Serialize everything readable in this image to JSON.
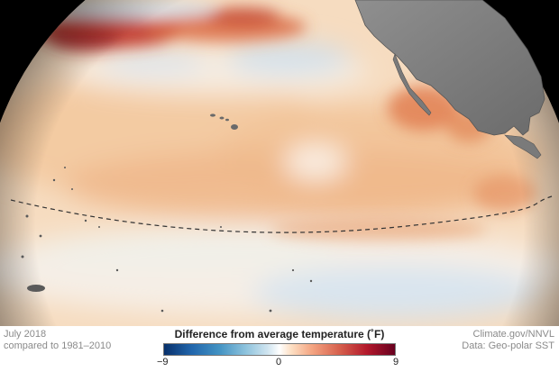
{
  "caption": {
    "date": "July 2018",
    "baseline": "compared to 1981–2010",
    "credit": "Climate.gov/NNVL",
    "source": "Data: Geo-polar SST"
  },
  "legend": {
    "title": "Difference from average temperature (˚F)",
    "min_label": "−9",
    "mid_label": "0",
    "max_label": "9",
    "colors": [
      "#08306b",
      "#2166ac",
      "#4393c3",
      "#92c5de",
      "#d1e5f0",
      "#ffffff",
      "#fde0c5",
      "#f4a582",
      "#d6604d",
      "#b2182b",
      "#67001f"
    ]
  },
  "map": {
    "region": "Pacific Ocean",
    "features": [
      "north-america-landmass",
      "hawaiian-islands",
      "equator-dashed-line",
      "pacific-islands"
    ]
  }
}
